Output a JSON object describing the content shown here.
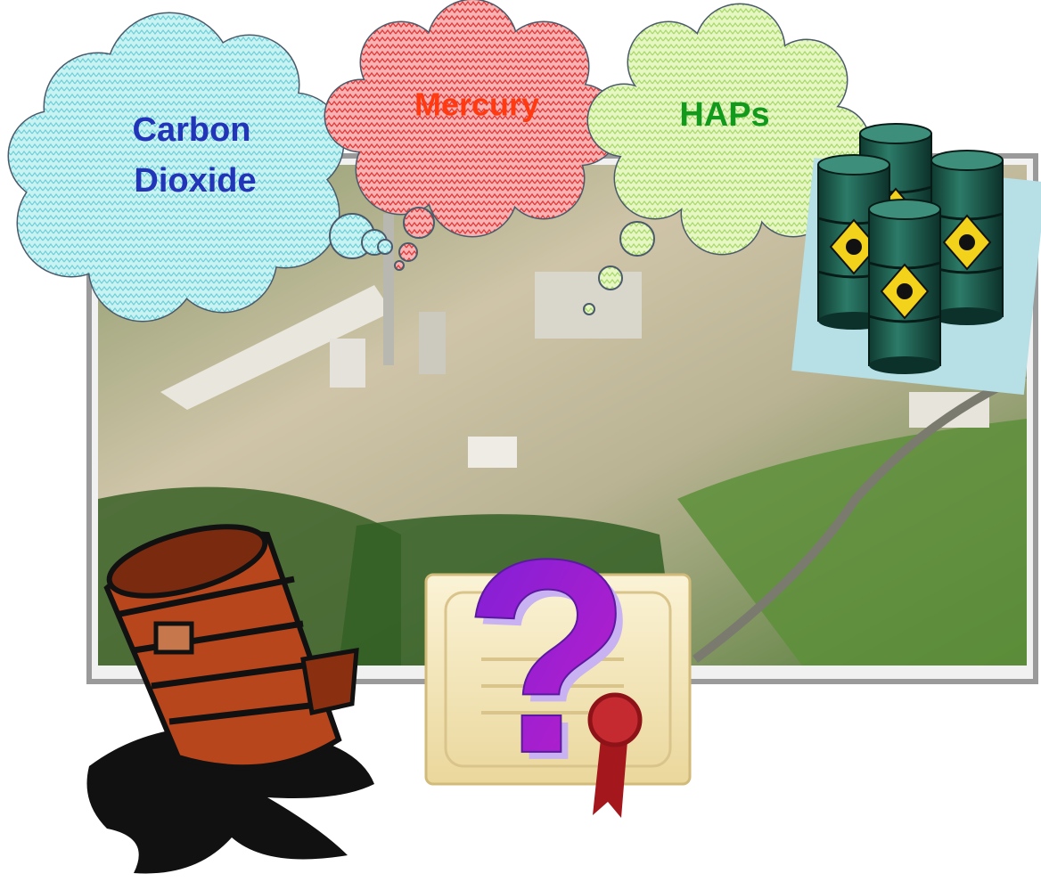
{
  "clouds": [
    {
      "label_lines": [
        "Carbon",
        "Dioxide"
      ]
    },
    {
      "label": "Mercury"
    },
    {
      "label": "HAPs"
    }
  ],
  "certificate": {
    "symbol": "?"
  }
}
